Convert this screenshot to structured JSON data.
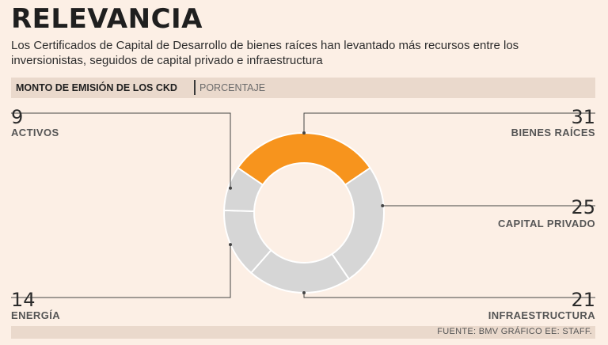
{
  "title": "RELEVANCIA",
  "subtitle": "Los Certificados de Capital de Desarrollo de bienes raíces han levantado más recursos entre los inversionistas, seguidos de capital privado e infraestructura",
  "header": {
    "main": "MONTO DE EMISIÓN DE LOS CKD",
    "unit": "PORCENTAJE"
  },
  "footer": {
    "source": "FUENTE: BMV GRÁFICO EE: STAFF."
  },
  "colors": {
    "highlight": "#f7941d",
    "base": "#d6d6d6",
    "divider": "#ffffff",
    "leader": "#444444",
    "background": "#fcefe5"
  },
  "chart_data": {
    "type": "pie",
    "variant": "donut",
    "unit": "PORCENTAJE",
    "slices": [
      {
        "label": "BIENES RAÍCES",
        "value": 31,
        "highlight": true
      },
      {
        "label": "CAPITAL PRIVADO",
        "value": 25,
        "highlight": false
      },
      {
        "label": "INFRAESTRUCTURA",
        "value": 21,
        "highlight": false
      },
      {
        "label": "ENERGÍA",
        "value": 14,
        "highlight": false
      },
      {
        "label": "ACTIVOS",
        "value": 9,
        "highlight": false
      }
    ]
  }
}
